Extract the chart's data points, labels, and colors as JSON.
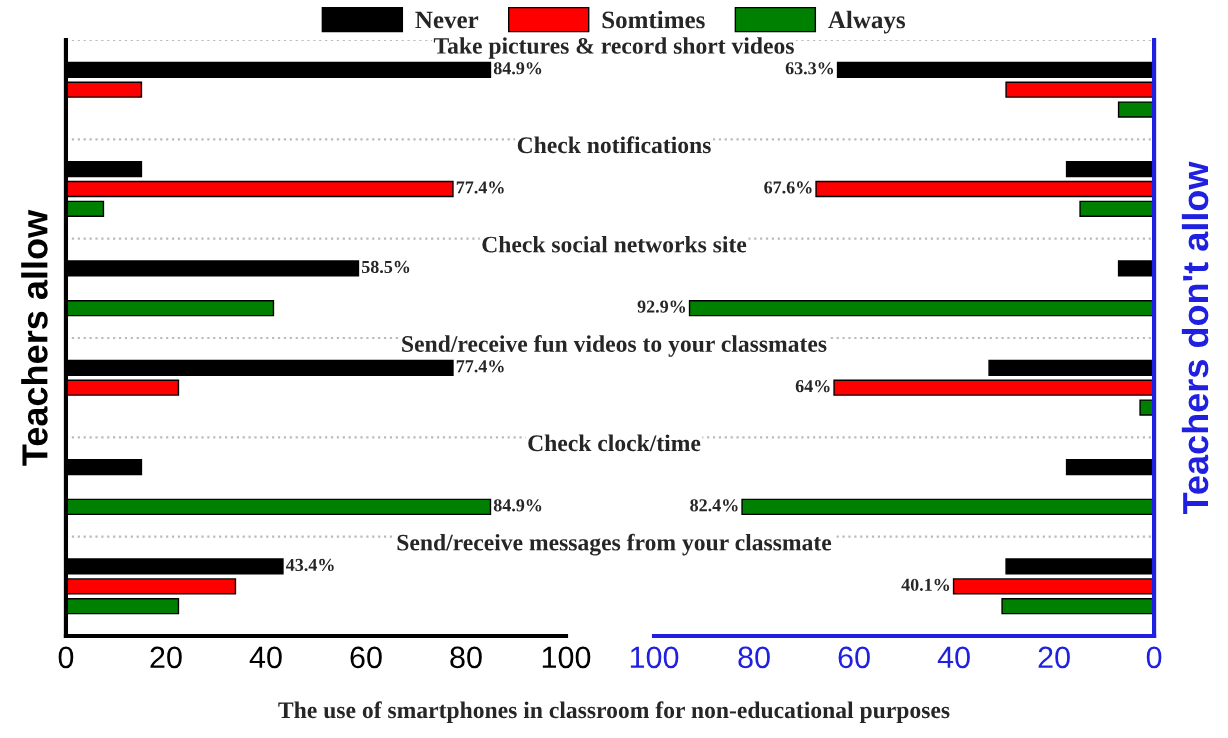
{
  "chart_data": [
    {
      "type": "bar",
      "orientation": "horizontal",
      "ylabel": "Teachers allow",
      "xlabel": "The use of smartphones in classroom for non-educational purposes",
      "categories": [
        null,
        null,
        null,
        null,
        null,
        null
      ],
      "annotations": [
        "Take pictures & record short videos",
        "Check notifications",
        "Check social networks site",
        "Send/receive fun videos to your classmates",
        "Check clock/time",
        "Send/receive messages from your classmate"
      ],
      "xlim": [
        0,
        100
      ],
      "xticks": [
        0,
        20,
        40,
        60,
        80,
        100
      ],
      "tick_labels": "x",
      "grid": "y",
      "legend": "top",
      "series": [
        {
          "name": "Never",
          "color": "#000000",
          "values": [
            84.9,
            15.1,
            58.5,
            77.4,
            15.1,
            43.4
          ],
          "value_labels": [
            "84.9%",
            null,
            "58.5%",
            "77.4%",
            null,
            "43.4%"
          ]
        },
        {
          "name": "Somtimes",
          "color": "#ff0000",
          "values": [
            15.1,
            77.4,
            null,
            22.5,
            null,
            33.9
          ],
          "value_labels": [
            null,
            "77.4%",
            null,
            null,
            null,
            null
          ]
        },
        {
          "name": "Always",
          "color": "#008000",
          "values": [
            null,
            7.5,
            41.5,
            null,
            84.9,
            22.5
          ],
          "value_labels": [
            null,
            null,
            null,
            null,
            "84.9%",
            null
          ]
        }
      ]
    },
    {
      "type": "bar",
      "orientation": "horizontal",
      "ylabel": "Teachers don't allow",
      "categories": [
        null,
        null,
        null,
        null,
        null,
        null
      ],
      "xlim": [
        100,
        0
      ],
      "xticks": [
        100,
        80,
        60,
        40,
        20,
        0
      ],
      "tick_labels": "x",
      "grid": "y",
      "series": [
        {
          "color": "#000000",
          "values": [
            63.3,
            17.5,
            7.1,
            33.0,
            17.5,
            29.6
          ],
          "value_labels": [
            "63.3%",
            null,
            null,
            null,
            null,
            null
          ]
        },
        {
          "color": "#ff0000",
          "values": [
            29.6,
            67.6,
            null,
            64,
            null,
            40.1
          ],
          "value_labels": [
            null,
            "67.6%",
            null,
            "64%",
            null,
            "40.1%"
          ]
        },
        {
          "color": "#008000",
          "values": [
            7.1,
            14.8,
            92.9,
            2.8,
            82.4,
            30.4
          ],
          "value_labels": [
            null,
            null,
            "92.9%",
            null,
            "82.4%",
            null
          ]
        }
      ]
    }
  ]
}
